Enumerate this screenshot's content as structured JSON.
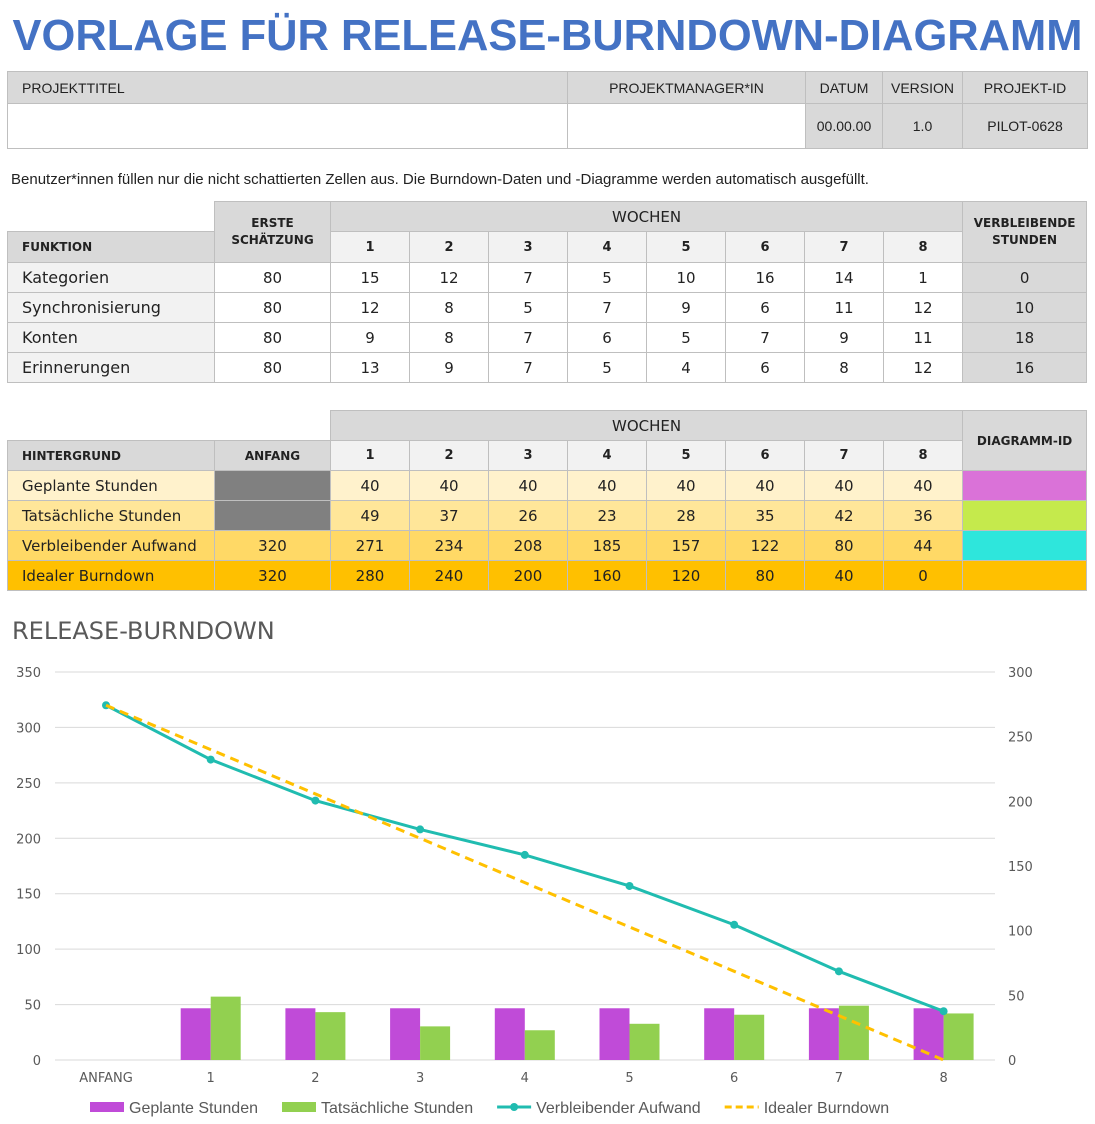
{
  "title": "VORLAGE FÜR RELEASE-BURNDOWN-DIAGRAMM",
  "project": {
    "headers": [
      "PROJEKTTITEL",
      "PROJEKTMANAGER*IN",
      "DATUM",
      "VERSION",
      "PROJEKT-ID"
    ],
    "values": [
      "",
      "",
      "00.00.00",
      "1.0",
      "PILOT-0628"
    ]
  },
  "note": "Benutzer*innen füllen nur die nicht schattierten Zellen aus.  Die Burndown-Daten und -Diagramme werden automatisch ausgefüllt.",
  "features": {
    "col_funktion": "FUNKTION",
    "col_estimate": "ERSTE SCHÄTZUNG",
    "col_weeks": "WOCHEN",
    "col_remaining": "VERBLEIBENDE STUNDEN",
    "weeks": [
      "1",
      "2",
      "3",
      "4",
      "5",
      "6",
      "7",
      "8"
    ],
    "rows": [
      {
        "name": "Kategorien",
        "estimate": "80",
        "values": [
          "15",
          "12",
          "7",
          "5",
          "10",
          "16",
          "14",
          "1"
        ],
        "remaining": "0"
      },
      {
        "name": "Synchronisierung",
        "estimate": "80",
        "values": [
          "12",
          "8",
          "5",
          "7",
          "9",
          "6",
          "11",
          "12"
        ],
        "remaining": "10"
      },
      {
        "name": "Konten",
        "estimate": "80",
        "values": [
          "9",
          "8",
          "7",
          "6",
          "5",
          "7",
          "9",
          "11"
        ],
        "remaining": "18"
      },
      {
        "name": "Erinnerungen",
        "estimate": "80",
        "values": [
          "13",
          "9",
          "7",
          "5",
          "4",
          "6",
          "8",
          "12"
        ],
        "remaining": "16"
      }
    ]
  },
  "background": {
    "col_label": "HINTERGRUND",
    "col_start": "ANFANG",
    "col_weeks": "WOCHEN",
    "col_id": "DIAGRAMM-ID",
    "weeks": [
      "1",
      "2",
      "3",
      "4",
      "5",
      "6",
      "7",
      "8"
    ],
    "rows": [
      {
        "name": "Geplante Stunden",
        "start": "",
        "values": [
          "40",
          "40",
          "40",
          "40",
          "40",
          "40",
          "40",
          "40"
        ],
        "color": "#da72d8"
      },
      {
        "name": "Tatsächliche Stunden",
        "start": "",
        "values": [
          "49",
          "37",
          "26",
          "23",
          "28",
          "35",
          "42",
          "36"
        ],
        "color": "#c5ea4c"
      },
      {
        "name": "Verbleibender Aufwand",
        "start": "320",
        "values": [
          "271",
          "234",
          "208",
          "185",
          "157",
          "122",
          "80",
          "44"
        ],
        "color": "#2ee6dc"
      },
      {
        "name": "Idealer Burndown",
        "start": "320",
        "values": [
          "280",
          "240",
          "200",
          "160",
          "120",
          "80",
          "40",
          "0"
        ],
        "color": ""
      }
    ]
  },
  "chart_data": {
    "type": "bar+line",
    "title": "RELEASE-BURNDOWN",
    "categories": [
      "ANFANG",
      "1",
      "2",
      "3",
      "4",
      "5",
      "6",
      "7",
      "8"
    ],
    "y_left": {
      "range": [
        0,
        350
      ],
      "ticks": [
        "0",
        "50",
        "100",
        "150",
        "200",
        "250",
        "300",
        "350"
      ]
    },
    "y_right": {
      "range": [
        0,
        300
      ],
      "ticks": [
        "0",
        "50",
        "100",
        "150",
        "200",
        "250",
        "300"
      ]
    },
    "grid": true,
    "legend": "bottom",
    "series": [
      {
        "name": "Geplante Stunden",
        "kind": "bar",
        "axis": "right",
        "color": "#c04bd8",
        "values": [
          null,
          40,
          40,
          40,
          40,
          40,
          40,
          40,
          40
        ]
      },
      {
        "name": "Tatsächliche Stunden",
        "kind": "bar",
        "axis": "right",
        "color": "#92d050",
        "values": [
          null,
          49,
          37,
          26,
          23,
          28,
          35,
          42,
          36
        ]
      },
      {
        "name": "Verbleibender Aufwand",
        "kind": "line",
        "axis": "left",
        "color": "#20bcb0",
        "values": [
          320,
          271,
          234,
          208,
          185,
          157,
          122,
          80,
          44
        ]
      },
      {
        "name": "Idealer Burndown",
        "kind": "dashed-line",
        "axis": "left",
        "color": "#ffc000",
        "values": [
          320,
          280,
          240,
          200,
          160,
          120,
          80,
          40,
          0
        ]
      }
    ]
  }
}
